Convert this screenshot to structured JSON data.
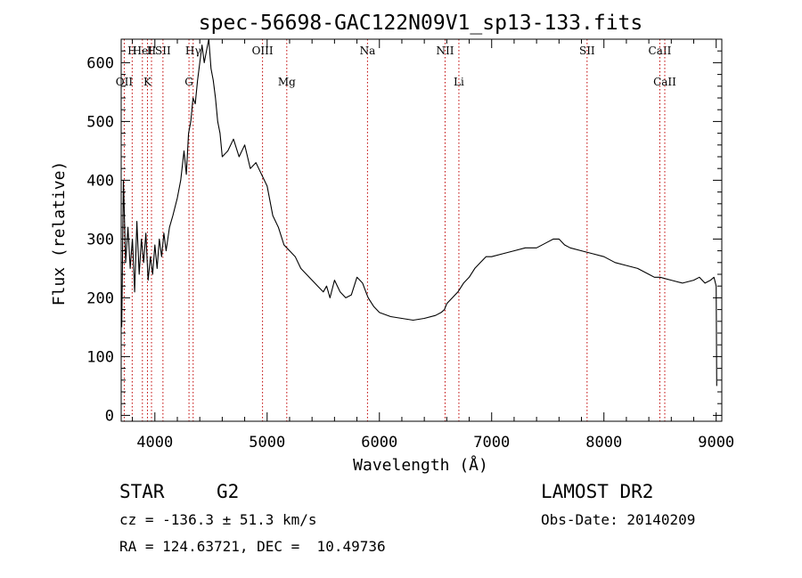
{
  "chart_data": {
    "type": "line",
    "title": "spec-56698-GAC122N09V1_sp13-133.fits",
    "xlabel": "Wavelength (Å)",
    "ylabel": "Flux (relative)",
    "xlim": [
      3700,
      9050
    ],
    "ylim": [
      -10,
      640
    ],
    "xticks": [
      4000,
      5000,
      6000,
      7000,
      8000,
      9000
    ],
    "yticks": [
      0,
      100,
      200,
      300,
      400,
      500,
      600
    ],
    "grid": false,
    "spectral_lines": [
      {
        "name": "OII",
        "wavelength": 3727,
        "row": "lower"
      },
      {
        "name": "H",
        "wavelength": 3798,
        "row": "upper"
      },
      {
        "name": "HeI",
        "wavelength": 3889,
        "row": "upper"
      },
      {
        "name": "K",
        "wavelength": 3934,
        "row": "lower"
      },
      {
        "name": "H",
        "wavelength": 3970,
        "row": "upper"
      },
      {
        "name": "SII",
        "wavelength": 4072,
        "row": "upper"
      },
      {
        "name": "G",
        "wavelength": 4304,
        "row": "lower"
      },
      {
        "name": "Hγ",
        "wavelength": 4341,
        "row": "upper"
      },
      {
        "name": "OIII",
        "wavelength": 4959,
        "row": "upper"
      },
      {
        "name": "Mg",
        "wavelength": 5175,
        "row": "lower"
      },
      {
        "name": "Na",
        "wavelength": 5894,
        "row": "upper"
      },
      {
        "name": "NII",
        "wavelength": 6585,
        "row": "upper"
      },
      {
        "name": "Li",
        "wavelength": 6708,
        "row": "lower"
      },
      {
        "name": "SII",
        "wavelength": 7850,
        "row": "upper"
      },
      {
        "name": "CaII",
        "wavelength": 8498,
        "row": "upper"
      },
      {
        "name": "CaII",
        "wavelength": 8542,
        "row": "lower"
      }
    ],
    "series": [
      {
        "x": [
          3705,
          3720,
          3740,
          3760,
          3780,
          3800,
          3820,
          3840,
          3860,
          3880,
          3900,
          3920,
          3940,
          3960,
          3980,
          4000,
          4020,
          4040,
          4060,
          4080,
          4100,
          4130,
          4160,
          4200,
          4230,
          4260,
          4280,
          4300,
          4320,
          4340,
          4360,
          4380,
          4400,
          4420,
          4440,
          4460,
          4480,
          4500,
          4520,
          4540,
          4560,
          4580,
          4600,
          4650,
          4700,
          4750,
          4800,
          4850,
          4900,
          4950,
          5000,
          5050,
          5100,
          5150,
          5200,
          5250,
          5300,
          5350,
          5400,
          5450,
          5500,
          5530,
          5560,
          5600,
          5650,
          5700,
          5750,
          5800,
          5850,
          5880,
          5900,
          5950,
          6000,
          6100,
          6200,
          6300,
          6400,
          6500,
          6550,
          6580,
          6600,
          6650,
          6700,
          6750,
          6800,
          6850,
          6900,
          6950,
          7000,
          7100,
          7200,
          7300,
          7400,
          7500,
          7550,
          7600,
          7650,
          7700,
          7800,
          7900,
          8000,
          8100,
          8200,
          8300,
          8400,
          8450,
          8500,
          8600,
          8700,
          8800,
          8850,
          8900,
          8950,
          8980,
          9000,
          9005
        ],
        "y": [
          150,
          400,
          260,
          320,
          250,
          300,
          210,
          330,
          240,
          300,
          260,
          310,
          230,
          270,
          240,
          290,
          250,
          300,
          270,
          310,
          280,
          320,
          340,
          370,
          400,
          450,
          410,
          480,
          500,
          540,
          530,
          570,
          600,
          630,
          600,
          620,
          640,
          590,
          570,
          540,
          500,
          480,
          440,
          450,
          470,
          440,
          460,
          420,
          430,
          410,
          390,
          340,
          320,
          290,
          280,
          270,
          250,
          240,
          230,
          220,
          210,
          220,
          200,
          230,
          210,
          200,
          205,
          235,
          225,
          210,
          200,
          185,
          175,
          168,
          165,
          162,
          165,
          170,
          175,
          180,
          190,
          200,
          210,
          225,
          235,
          250,
          260,
          270,
          270,
          275,
          280,
          285,
          285,
          295,
          300,
          300,
          290,
          285,
          280,
          275,
          270,
          260,
          255,
          250,
          240,
          235,
          235,
          230,
          225,
          230,
          235,
          225,
          230,
          235,
          220,
          50
        ]
      }
    ]
  },
  "info": {
    "object_class": "STAR",
    "subclass": "G2",
    "survey": "LAMOST DR2",
    "redshift": "cz = -136.3 ± 51.3 km/s",
    "obs_date": "Obs-Date: 20140209",
    "coords": "RA = 124.63721, DEC =  10.49736"
  }
}
